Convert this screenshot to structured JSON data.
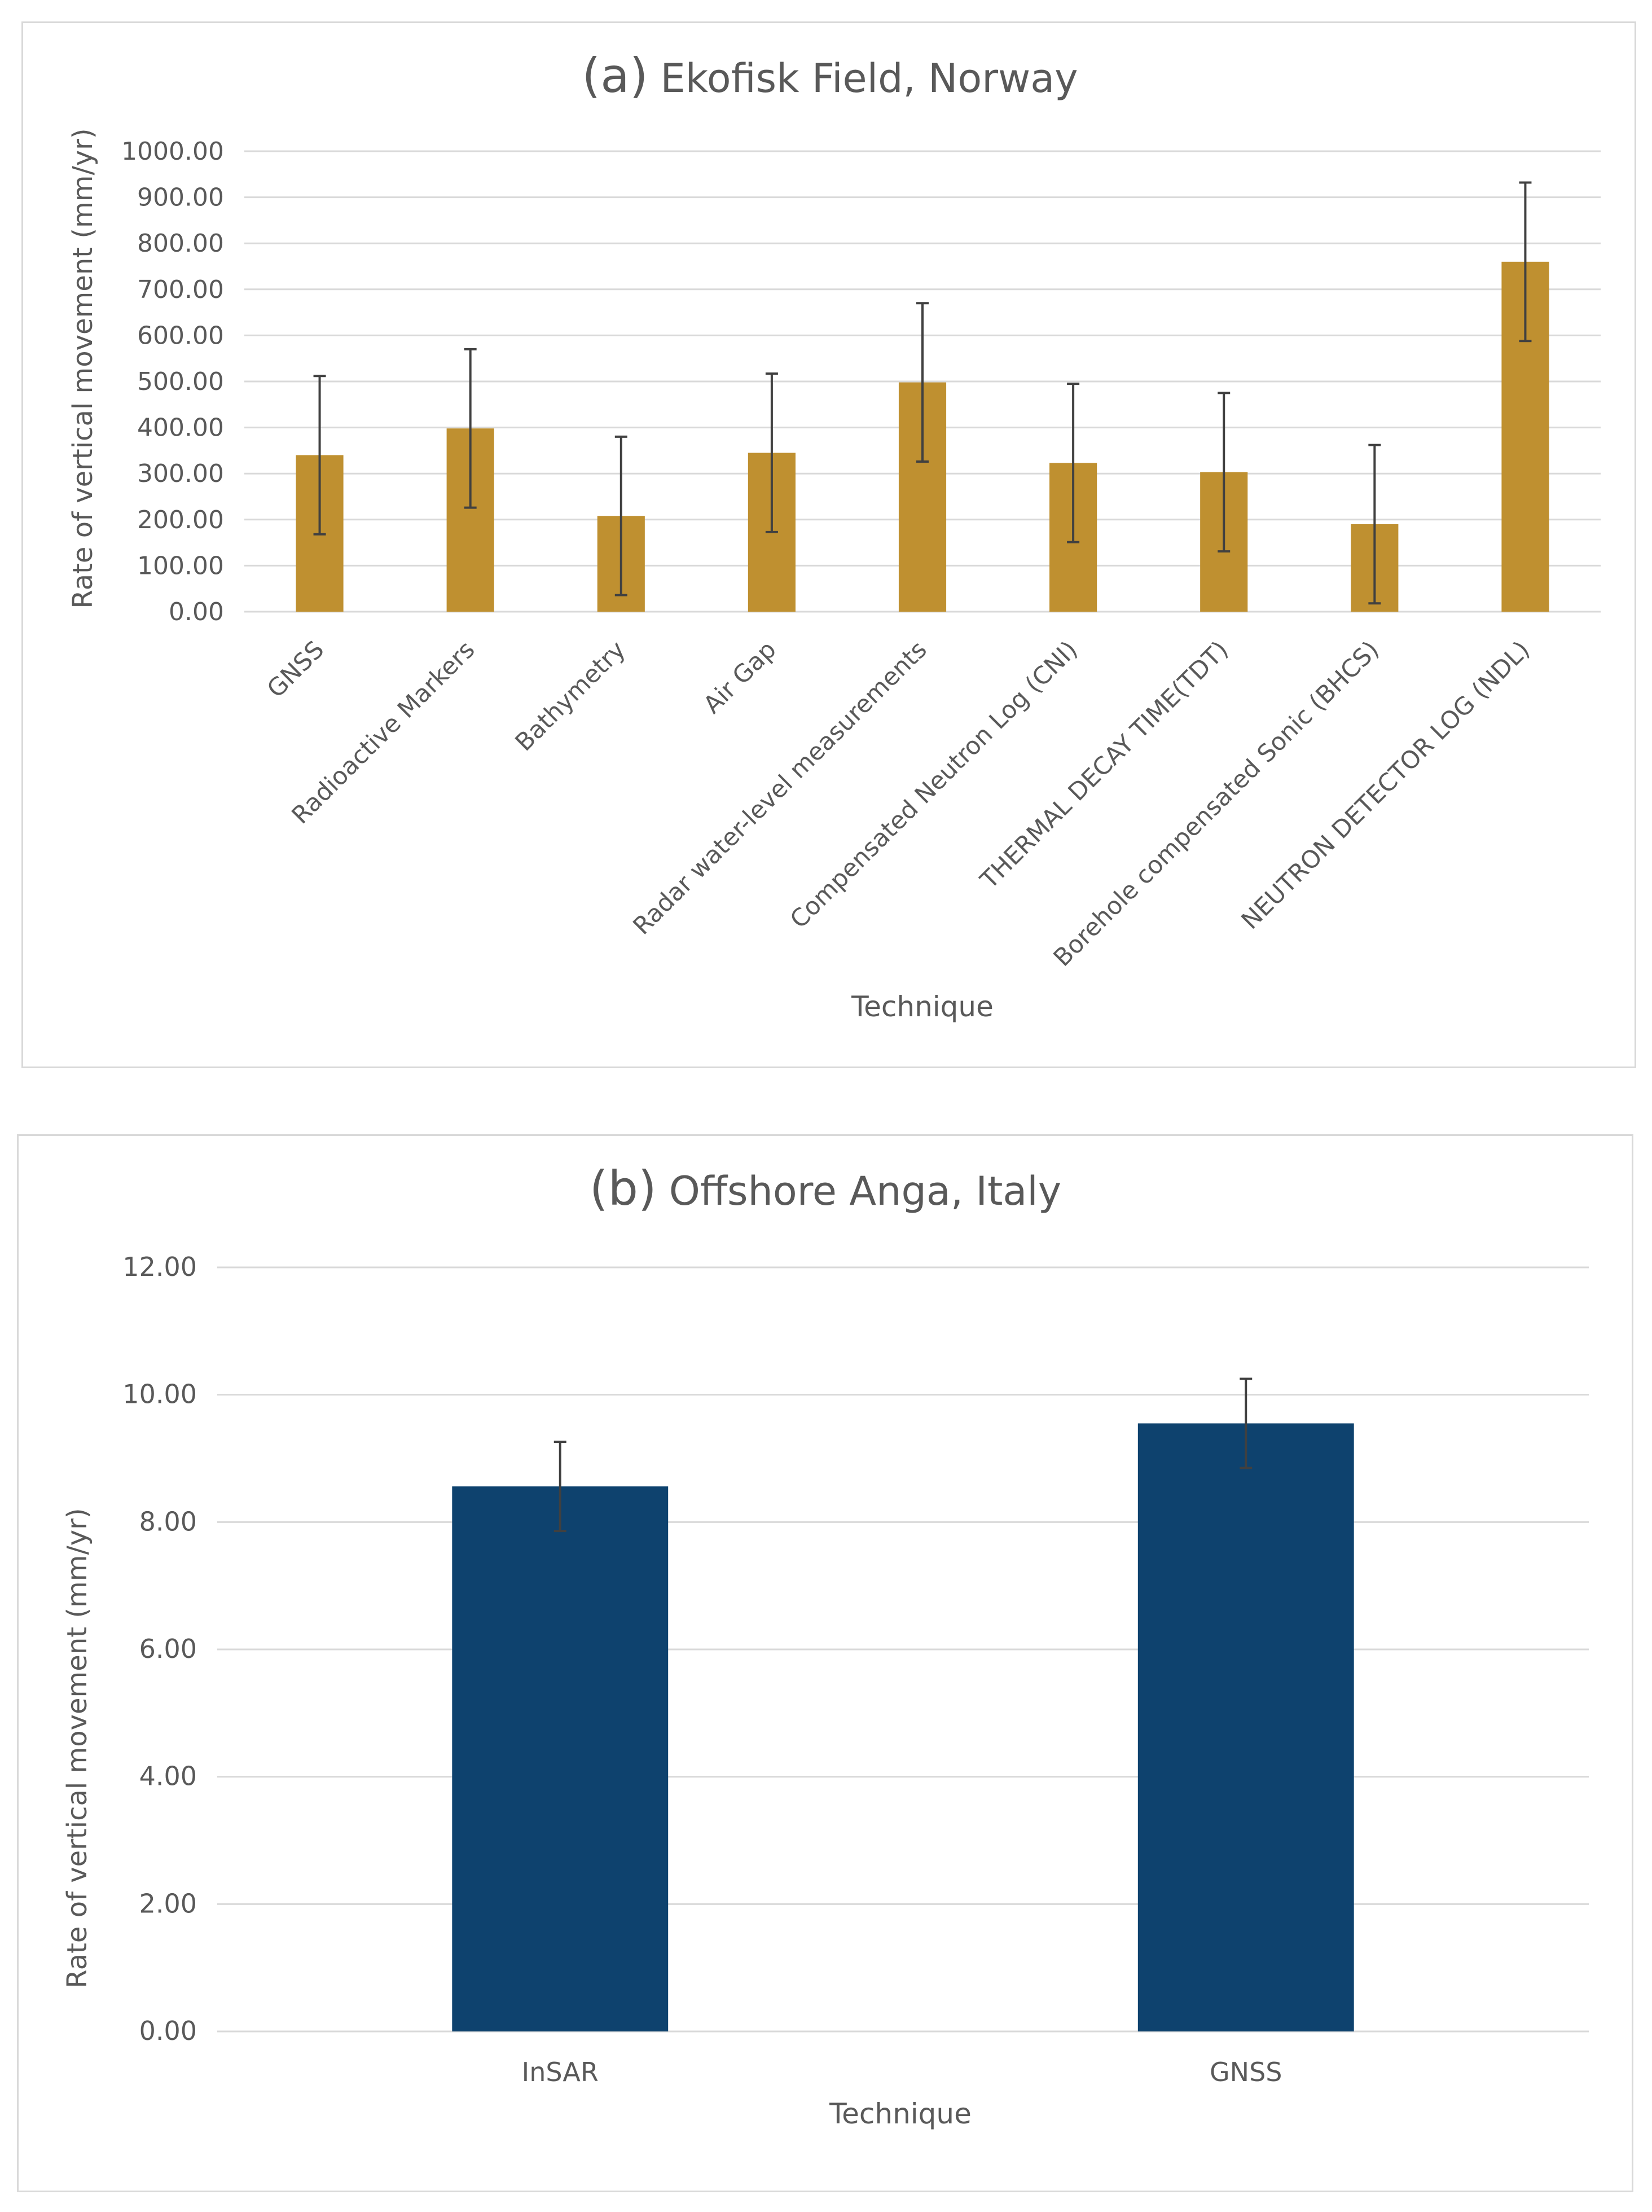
{
  "chart_data": [
    {
      "type": "bar",
      "title_prefix": "(a)",
      "title": "Ekofisk Field, Norway",
      "xlabel": "Technique",
      "ylabel": "Rate of vertical movement (mm/yr)",
      "ylim": [
        0,
        1000
      ],
      "ytick_step": 100,
      "ytick_decimals": 2,
      "grid": true,
      "bar_color": "#bf9030",
      "categories": [
        "GNSS",
        "Radioactive Markers",
        "Bathymetry",
        "Air Gap",
        "Radar water-level measurements",
        "Compensated Neutron Log (CNI)",
        "THERMAL DECAY TIME(TDT)",
        "Borehole compensated Sonic (BHCS)",
        "NEUTRON DETECTOR LOG (NDL)"
      ],
      "values": [
        340,
        398,
        208,
        345,
        498,
        323,
        303,
        190,
        760
      ],
      "error": [
        172,
        172,
        172,
        172,
        172,
        172,
        172,
        172,
        172
      ]
    },
    {
      "type": "bar",
      "title_prefix": "(b)",
      "title": "Offshore Anga, Italy",
      "xlabel": "Technique",
      "ylabel": "Rate of vertical movement (mm/yr)",
      "ylim": [
        0,
        12
      ],
      "ytick_step": 2,
      "ytick_decimals": 2,
      "grid": true,
      "bar_color": "#0e426e",
      "categories": [
        "InSAR",
        "GNSS"
      ],
      "values": [
        8.56,
        9.55
      ],
      "error": [
        0.7,
        0.7
      ]
    }
  ]
}
